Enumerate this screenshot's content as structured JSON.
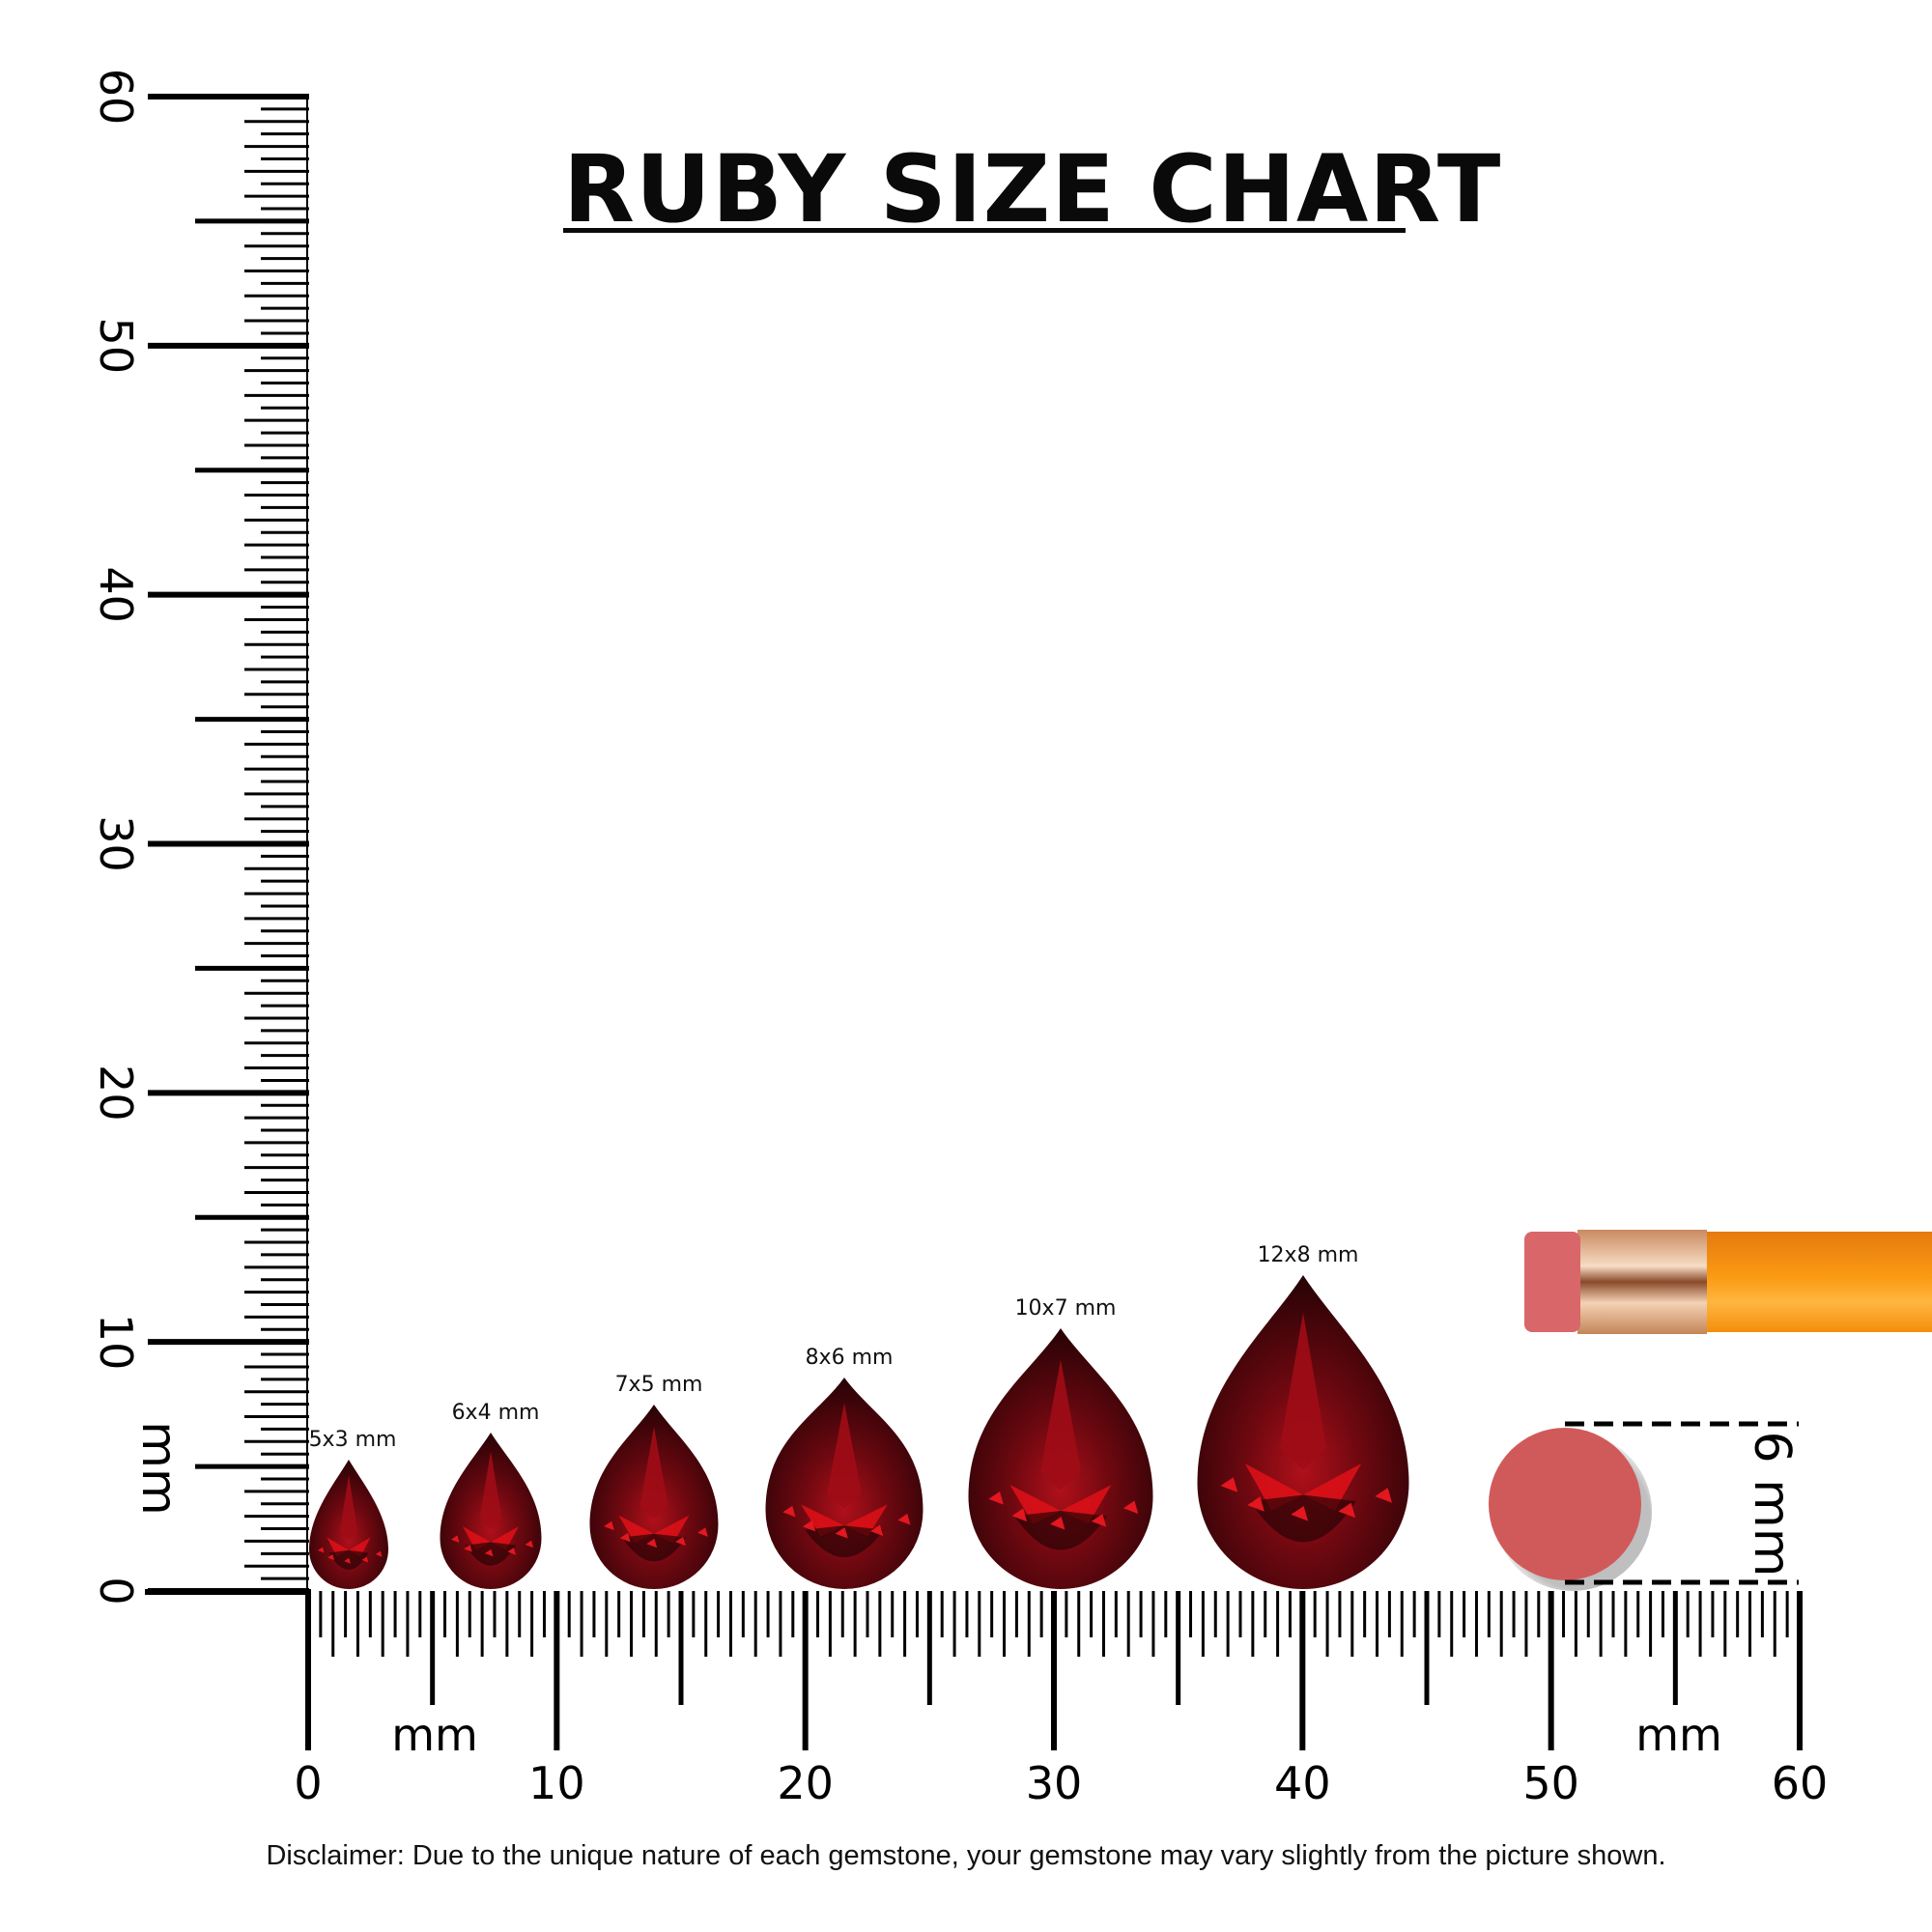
{
  "title": "RUBY SIZE CHART",
  "disclaimer": "Disclaimer: Due to the unique nature of each gemstone, your gemstone may vary slightly from the picture shown.",
  "vertical_ruler": {
    "unit_label": "mm",
    "labels": [
      "0",
      "10",
      "20",
      "30",
      "40",
      "50",
      "60"
    ],
    "range_mm": [
      0,
      60
    ]
  },
  "horizontal_ruler": {
    "unit_label": "mm",
    "labels": [
      "0",
      "10",
      "20",
      "30",
      "40",
      "50",
      "60"
    ],
    "range_mm": [
      0,
      60
    ]
  },
  "gems": [
    {
      "label": "5x3 mm",
      "length_mm": 5,
      "width_mm": 3
    },
    {
      "label": "6x4 mm",
      "length_mm": 6,
      "width_mm": 4
    },
    {
      "label": "7x5 mm",
      "length_mm": 7,
      "width_mm": 5
    },
    {
      "label": "8x6 mm",
      "length_mm": 8,
      "width_mm": 6
    },
    {
      "label": "10x7 mm",
      "length_mm": 10,
      "width_mm": 7
    },
    {
      "label": "12x8 mm",
      "length_mm": 12,
      "width_mm": 8
    }
  ],
  "eraser_reference": {
    "label": "6 mm",
    "diameter_mm": 6
  },
  "colors": {
    "ruby_dark": "#3a0508",
    "ruby_mid": "#8e0a12",
    "ruby_bright": "#e01018",
    "eraser": "#d05a5a",
    "pencil": "#f7930e",
    "ferrule": "#d9a27a"
  }
}
